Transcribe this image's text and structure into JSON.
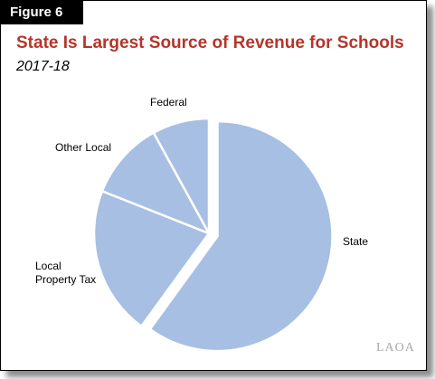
{
  "figure_label": "Figure 6",
  "title": "State Is Largest Source of Revenue for Schools",
  "subtitle": "2017-18",
  "logo_text": "LAOA",
  "colors": {
    "slice": "#a7bfe3",
    "title": "#b5352a"
  },
  "chart_data": {
    "type": "pie",
    "title": "State Is Largest Source of Revenue for Schools",
    "subtitle": "2017-18",
    "start_angle_deg": 0,
    "direction": "clockwise",
    "exploded": [
      "State"
    ],
    "slices": [
      {
        "label": "State",
        "value": 60
      },
      {
        "label": "Local\nProperty Tax",
        "value": 21
      },
      {
        "label": "Other Local",
        "value": 11
      },
      {
        "label": "Federal",
        "value": 8
      }
    ]
  }
}
